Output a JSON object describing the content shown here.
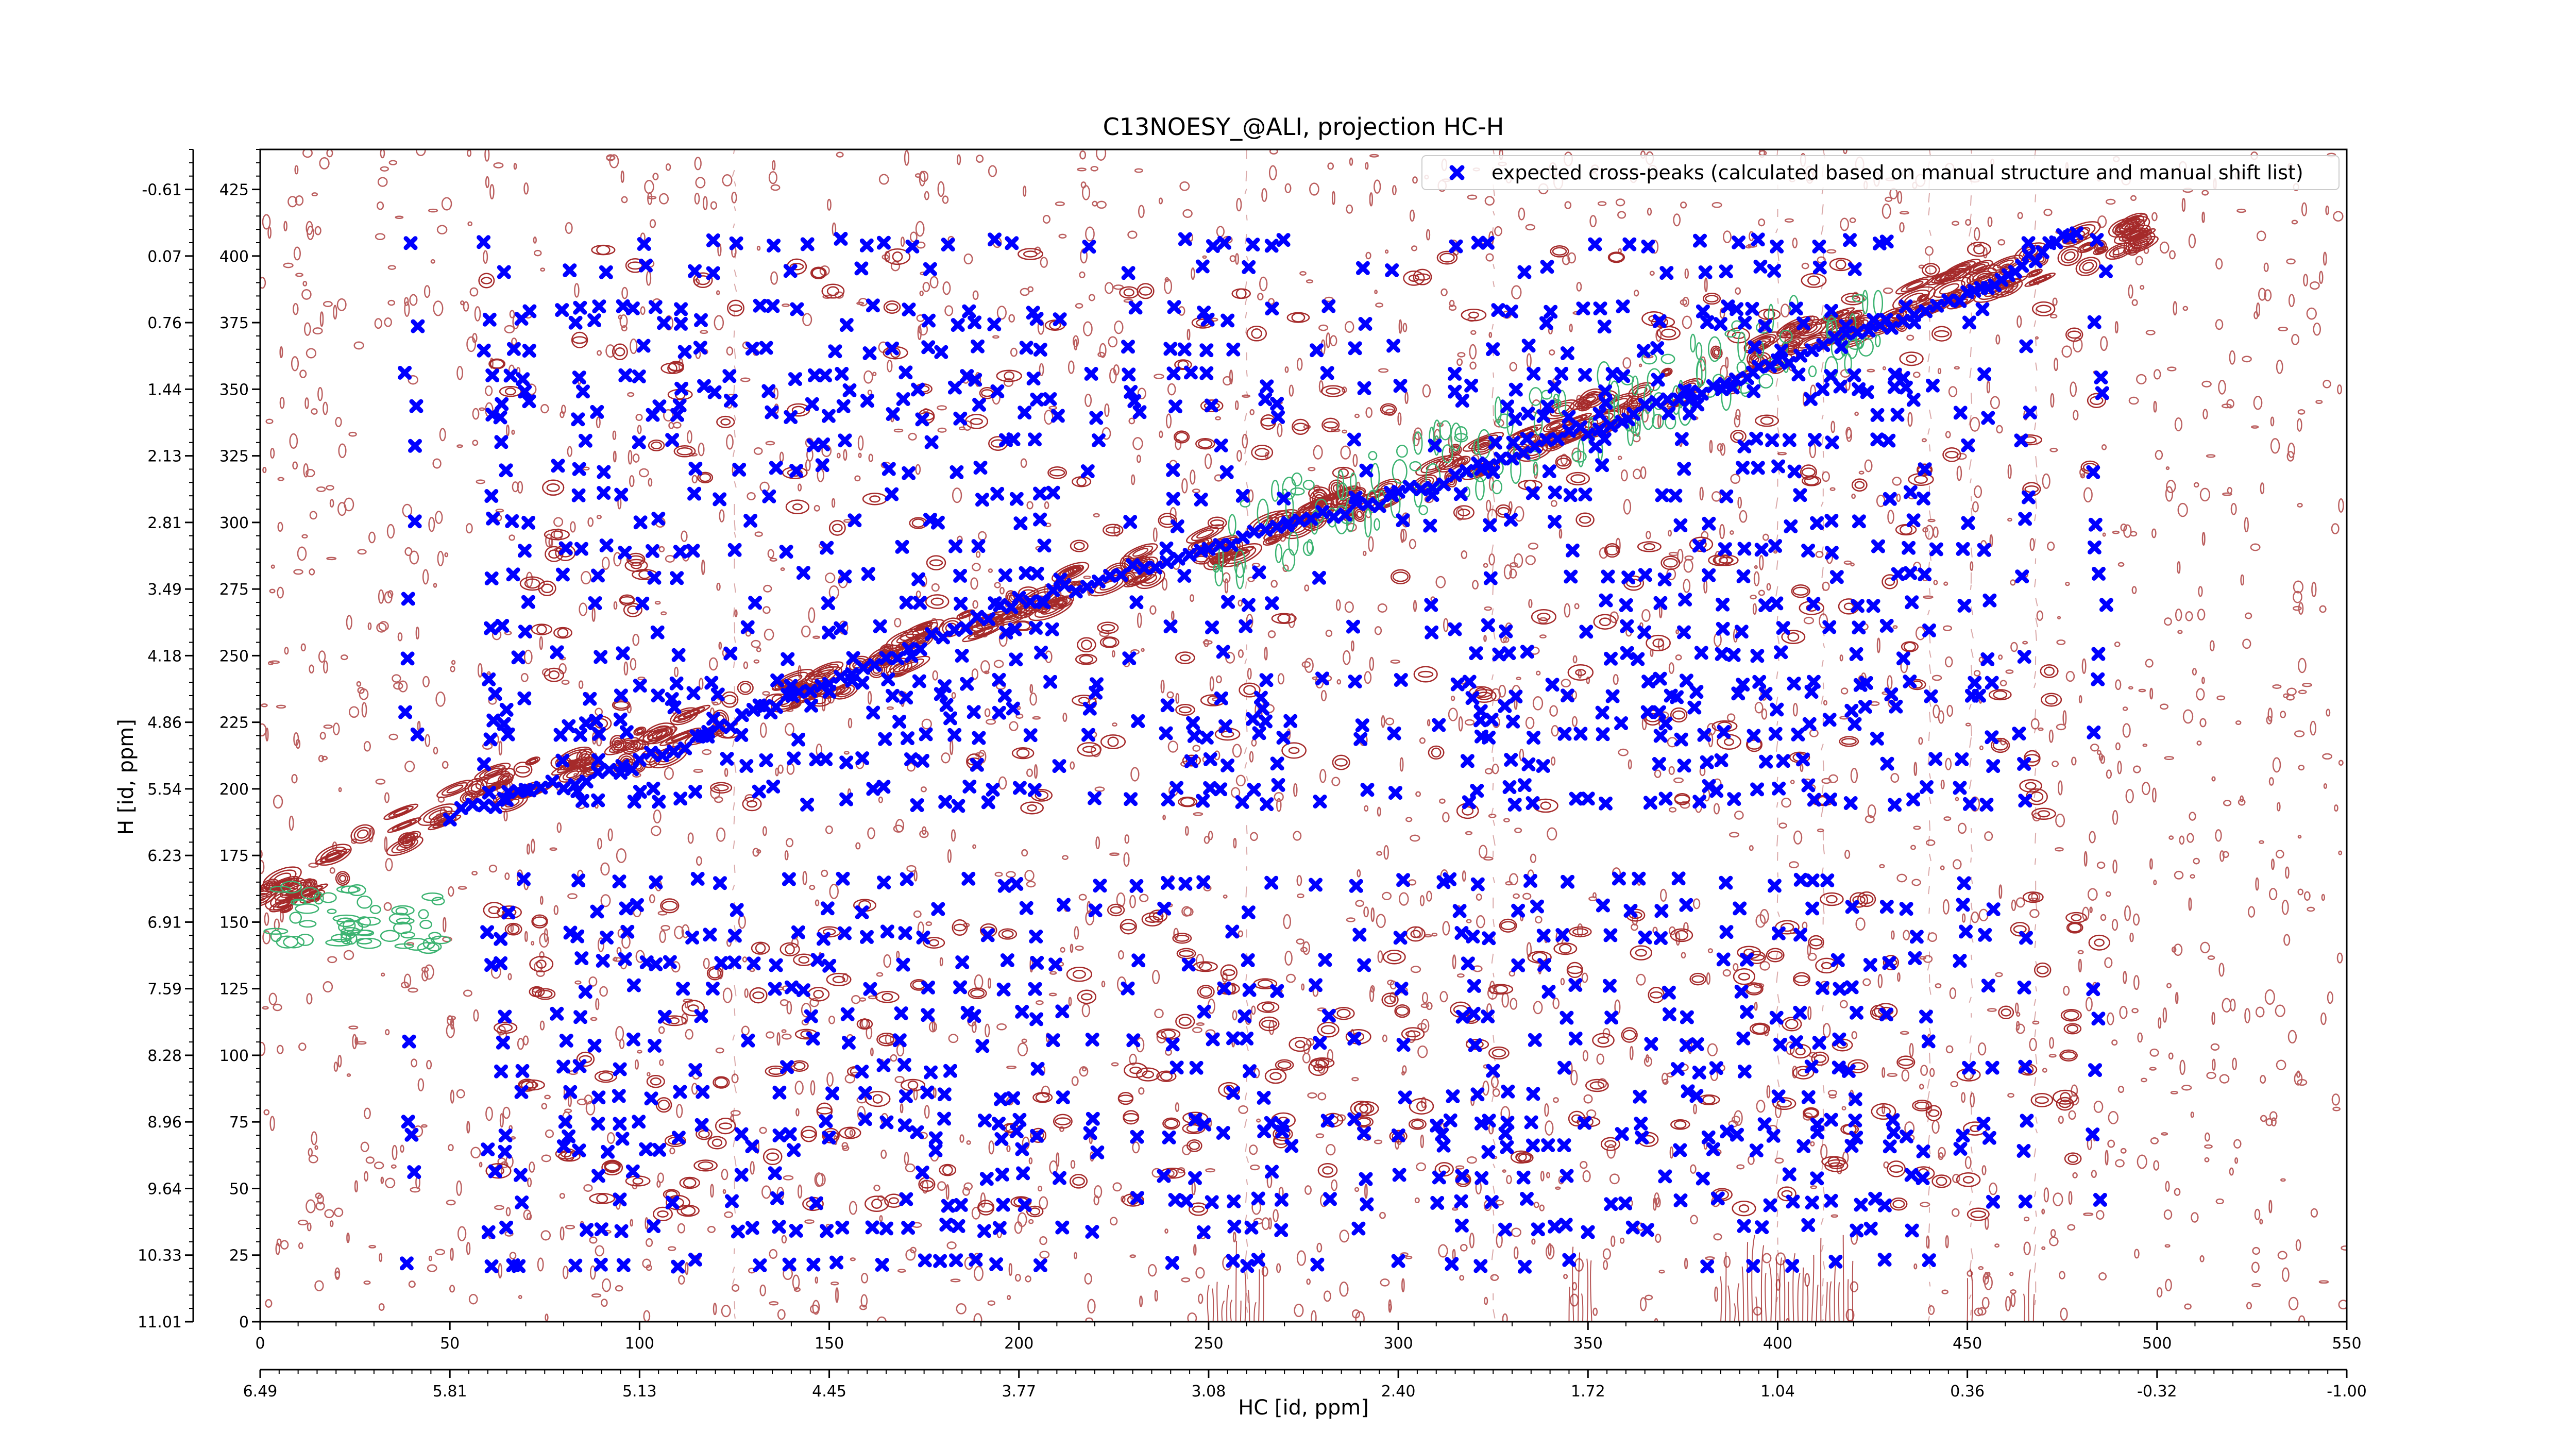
{
  "chart_data": {
    "type": "scatter",
    "title": "C13NOESY_@ALI, projection HC-H",
    "xlabel": "HC [id, ppm]",
    "ylabel": "H [id, ppm]",
    "xlim": [
      0,
      550
    ],
    "ylim": [
      0,
      440
    ],
    "grid": false,
    "legend": {
      "position": "top-right"
    },
    "x_ticks": [
      0,
      50,
      100,
      150,
      200,
      250,
      300,
      350,
      400,
      450,
      500,
      550
    ],
    "y_ticks": [
      0,
      25,
      50,
      75,
      100,
      125,
      150,
      175,
      200,
      225,
      250,
      275,
      300,
      325,
      350,
      375,
      400,
      425
    ],
    "x_ppm_ticks": [
      "6.49",
      "5.81",
      "5.13",
      "4.45",
      "3.77",
      "3.08",
      "2.40",
      "1.72",
      "1.04",
      "0.36",
      "-0.32",
      "-1.00"
    ],
    "y_ppm_ticks": [
      "11.01",
      "10.33",
      "9.64",
      "8.96",
      "8.28",
      "7.59",
      "6.91",
      "6.23",
      "5.54",
      "4.86",
      "4.18",
      "3.49",
      "2.81",
      "2.13",
      "1.44",
      "0.76",
      "0.07",
      "-0.61"
    ],
    "series": [
      {
        "name": "expected cross-peaks (calculated based on manual structure and manual shift list)",
        "color": "#0000ff",
        "marker": "x",
        "columns_x": [
          40,
          60,
          65,
          70,
          80,
          85,
          90,
          95,
          100,
          105,
          110,
          115,
          120,
          125,
          130,
          135,
          140,
          145,
          150,
          155,
          160,
          165,
          170,
          175,
          180,
          185,
          190,
          195,
          200,
          205,
          210,
          220,
          230,
          240,
          245,
          250,
          255,
          260,
          265,
          270,
          280,
          290,
          300,
          310,
          315,
          320,
          325,
          330,
          335,
          340,
          345,
          350,
          355,
          360,
          365,
          370,
          375,
          380,
          385,
          390,
          395,
          400,
          405,
          410,
          415,
          420,
          425,
          430,
          435,
          440,
          450,
          455,
          465,
          485
        ],
        "rows_y": [
          405,
          395,
          380,
          375,
          365,
          355,
          350,
          345,
          340,
          330,
          320,
          310,
          300,
          290,
          280,
          270,
          260,
          250,
          240,
          235,
          230,
          225,
          220,
          210,
          200,
          195,
          165,
          155,
          145,
          135,
          125,
          115,
          105,
          95,
          85,
          75,
          70,
          65,
          55,
          45,
          35,
          22
        ],
        "diagonal": [
          [
            50,
            190
          ],
          [
            100,
            210
          ],
          [
            150,
            240
          ],
          [
            200,
            270
          ],
          [
            250,
            290
          ],
          [
            300,
            310
          ],
          [
            350,
            335
          ],
          [
            400,
            360
          ],
          [
            450,
            385
          ],
          [
            480,
            410
          ]
        ]
      }
    ],
    "contours": {
      "positive_color": "#a52a2a",
      "negative_color": "#3cb371",
      "diagonal": [
        [
          0,
          155
        ],
        [
          50,
          195
        ],
        [
          100,
          215
        ],
        [
          150,
          240
        ],
        [
          200,
          270
        ],
        [
          250,
          290
        ],
        [
          300,
          315
        ],
        [
          350,
          340
        ],
        [
          400,
          365
        ],
        [
          450,
          390
        ],
        [
          500,
          410
        ]
      ]
    }
  }
}
